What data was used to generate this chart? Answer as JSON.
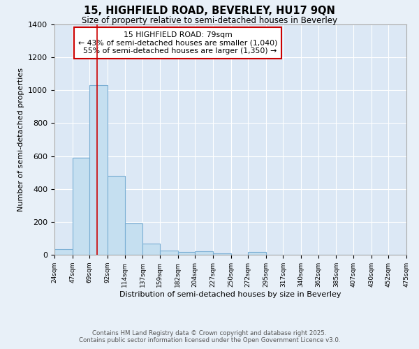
{
  "title_line1": "15, HIGHFIELD ROAD, BEVERLEY, HU17 9QN",
  "title_line2": "Size of property relative to semi-detached houses in Beverley",
  "xlabel": "Distribution of semi-detached houses by size in Beverley",
  "ylabel": "Number of semi-detached properties",
  "property_size": 79,
  "property_label": "15 HIGHFIELD ROAD: 79sqm",
  "pct_smaller": 43,
  "pct_larger": 55,
  "count_smaller": 1040,
  "count_larger": 1350,
  "bar_bins": [
    24,
    47,
    69,
    92,
    114,
    137,
    159,
    182,
    204,
    227,
    250,
    272,
    295,
    317,
    340,
    362,
    385,
    407,
    430,
    452,
    475
  ],
  "bar_heights": [
    35,
    590,
    1030,
    480,
    190,
    70,
    25,
    15,
    20,
    10,
    0,
    15,
    0,
    0,
    0,
    0,
    0,
    0,
    0,
    0
  ],
  "bar_color": "#c5dff0",
  "bar_edge_color": "#7bafd4",
  "vline_color": "#cc0000",
  "vline_x": 79,
  "annotation_box_color": "#cc0000",
  "background_color": "#e8f0f8",
  "plot_bg_color": "#dce8f5",
  "grid_color": "#ffffff",
  "ylim": [
    0,
    1400
  ],
  "yticks": [
    0,
    200,
    400,
    600,
    800,
    1000,
    1200,
    1400
  ],
  "footnote_line1": "Contains HM Land Registry data © Crown copyright and database right 2025.",
  "footnote_line2": "Contains public sector information licensed under the Open Government Licence v3.0."
}
